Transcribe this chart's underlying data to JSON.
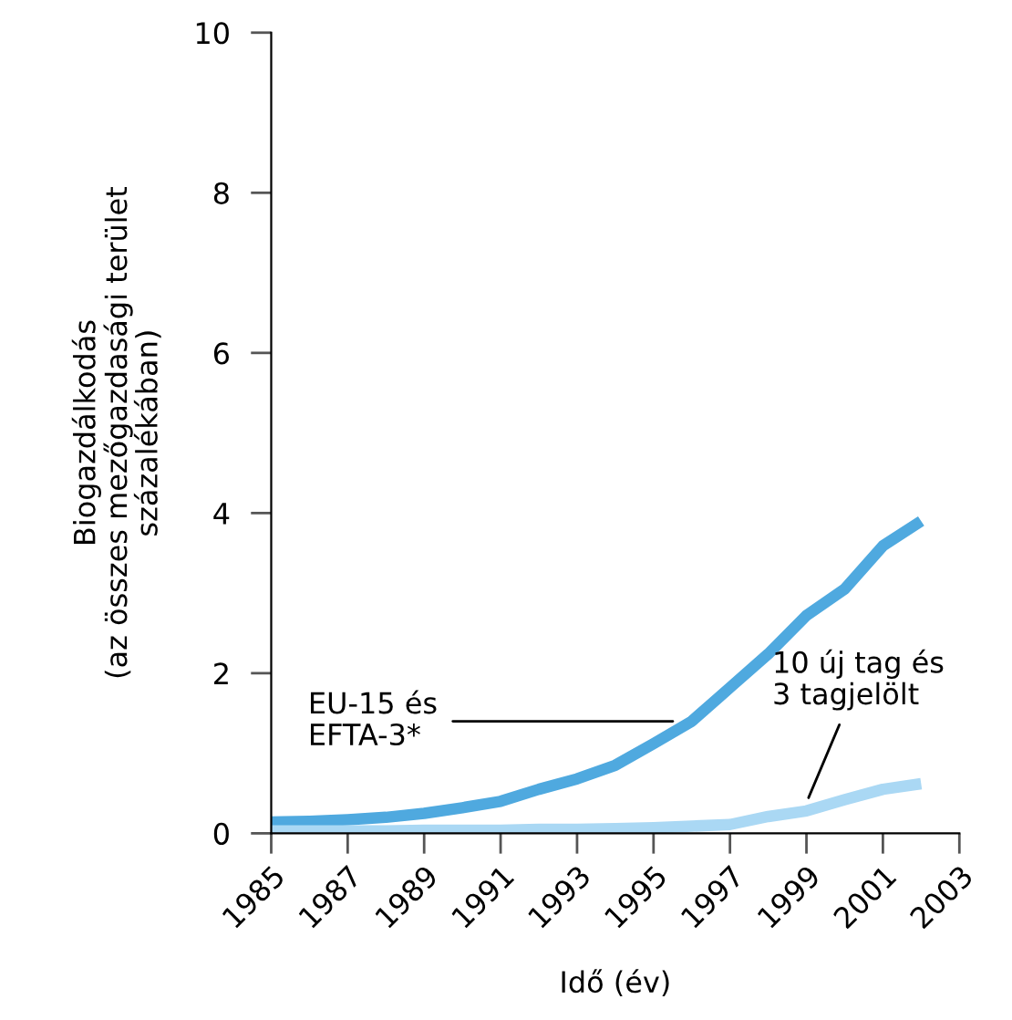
{
  "chart_data": {
    "type": "line",
    "xlabel": "Idő (év)",
    "ylabel": "Biogazdálkodás\n(az összes mezőgazdasági terület\nszázalékában)",
    "x": [
      1985,
      1986,
      1987,
      1988,
      1989,
      1990,
      1991,
      1992,
      1993,
      1994,
      1995,
      1996,
      1997,
      1998,
      1999,
      2000,
      2001,
      2002
    ],
    "series": [
      {
        "color": "#4fa9df",
        "values": [
          0.14,
          0.15,
          0.17,
          0.2,
          0.25,
          0.32,
          0.4,
          0.55,
          0.68,
          0.85,
          1.12,
          1.4,
          1.82,
          2.24,
          2.72,
          3.05,
          3.59,
          3.9
        ]
      },
      {
        "color": "#aad8f4",
        "values": [
          0.03,
          0.03,
          0.03,
          0.03,
          0.04,
          0.04,
          0.04,
          0.05,
          0.05,
          0.06,
          0.07,
          0.09,
          0.11,
          0.21,
          0.28,
          0.42,
          0.55,
          0.62
        ]
      }
    ],
    "annotations": [
      {
        "text": "EU-15 és\nEFTA-3*",
        "x": 1995.9,
        "y": 1.4
      },
      {
        "text": "10 új tag és\n3 tagjelölt",
        "x": 1998.9,
        "y": 0.27
      }
    ],
    "xlim": [
      1985,
      2003
    ],
    "xticks": [
      1985,
      1987,
      1989,
      1991,
      1993,
      1995,
      1997,
      1999,
      2001,
      2003
    ],
    "ylim": [
      0,
      10
    ],
    "yticks": [
      0,
      2,
      4,
      6,
      8,
      10
    ],
    "grid": false,
    "legend": false
  }
}
